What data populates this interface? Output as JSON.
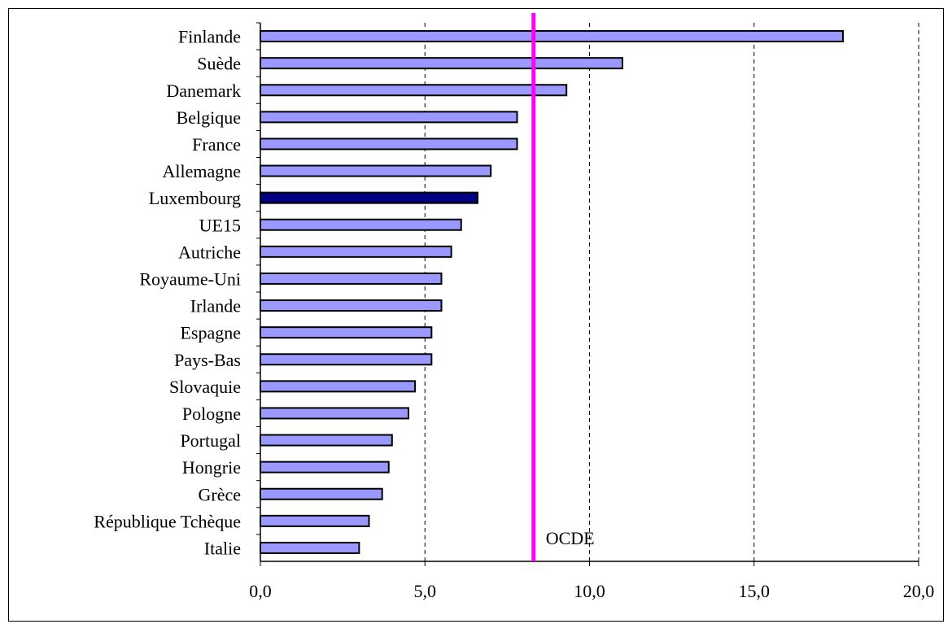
{
  "chart_data": {
    "type": "bar",
    "orientation": "horizontal",
    "title": "",
    "xlabel": "",
    "ylabel": "",
    "xlim": [
      0,
      20
    ],
    "xticks": [
      0,
      5,
      10,
      15,
      20
    ],
    "xtick_labels": [
      "0,0",
      "5,0",
      "10,0",
      "15,0",
      "20,0"
    ],
    "grid": "vertical dashed",
    "categories": [
      "Finlande",
      "Suède",
      "Danemark",
      "Belgique",
      "France",
      "Allemagne",
      "Luxembourg",
      "UE15",
      "Autriche",
      "Royaume-Uni",
      "Irlande",
      "Espagne",
      "Pays-Bas",
      "Slovaquie",
      "Pologne",
      "Portugal",
      "Hongrie",
      "Grèce",
      "République Tchèque",
      "Italie"
    ],
    "values": [
      17.7,
      11.0,
      9.3,
      7.8,
      7.8,
      7.0,
      6.6,
      6.1,
      5.8,
      5.5,
      5.5,
      5.2,
      5.2,
      4.7,
      4.5,
      4.0,
      3.9,
      3.7,
      3.3,
      3.0
    ],
    "highlight": "Luxembourg",
    "colors": {
      "bar": "#9999ff",
      "highlight_bar": "#000080",
      "bar_outline": "#000000",
      "reference_line": "#ff00ff",
      "grid": "#000000"
    },
    "reference_line": {
      "label": "OCDE",
      "value": 8.3
    }
  }
}
